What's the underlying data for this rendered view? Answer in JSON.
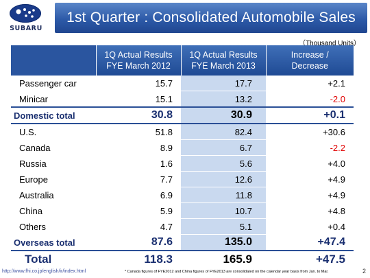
{
  "header": {
    "logo_text": "SUBARU",
    "title": "1st Quarter : Consolidated Automobile Sales"
  },
  "units": "（Thousand Units）",
  "table": {
    "columns": [
      "",
      "1Q Actual Results\nFYE March 2012",
      "1Q Actual Results\nFYE March 2013",
      "Increase /\nDecrease"
    ],
    "column_lines": [
      [
        ""
      ],
      [
        "1Q Actual Results",
        "FYE March 2012"
      ],
      [
        "1Q Actual Results",
        "FYE March 2013"
      ],
      [
        "Increase /",
        "Decrease"
      ]
    ],
    "rows": [
      {
        "label": "Passenger car",
        "fye2012": "15.7",
        "fye2013": "17.7",
        "change": "+2.1",
        "negative": false,
        "bold": false
      },
      {
        "label": "Minicar",
        "fye2012": "15.1",
        "fye2013": "13.2",
        "change": "-2.0",
        "negative": true,
        "bold": false
      },
      {
        "label": "Domestic total",
        "fye2012": "30.8",
        "fye2013": "30.9",
        "change": "+0.1",
        "negative": false,
        "bold": true
      },
      {
        "label": "U.S.",
        "fye2012": "51.8",
        "fye2013": "82.4",
        "change": "+30.6",
        "negative": false,
        "bold": false
      },
      {
        "label": "Canada",
        "fye2012": "8.9",
        "fye2013": "6.7",
        "change": "-2.2",
        "negative": true,
        "bold": false
      },
      {
        "label": "Russia",
        "fye2012": "1.6",
        "fye2013": "5.6",
        "change": "+4.0",
        "negative": false,
        "bold": false
      },
      {
        "label": "Europe",
        "fye2012": "7.7",
        "fye2013": "12.6",
        "change": "+4.9",
        "negative": false,
        "bold": false
      },
      {
        "label": "Australia",
        "fye2012": "6.9",
        "fye2013": "11.8",
        "change": "+4.9",
        "negative": false,
        "bold": false
      },
      {
        "label": "China",
        "fye2012": "5.9",
        "fye2013": "10.7",
        "change": "+4.8",
        "negative": false,
        "bold": false
      },
      {
        "label": "Others",
        "fye2012": "4.7",
        "fye2013": "5.1",
        "change": "+0.4",
        "negative": false,
        "bold": false
      },
      {
        "label": "Overseas total",
        "fye2012": "87.6",
        "fye2013": "135.0",
        "change": "+47.4",
        "negative": false,
        "bold": true
      },
      {
        "label": "Total",
        "fye2012": "118.3",
        "fye2013": "165.9",
        "change": "+47.5",
        "negative": false,
        "bold": true,
        "total": true
      }
    ]
  },
  "footer": {
    "url": "http://www.fhi.co.jp/english/ir/index.html",
    "note": "* Canada figures of FYE2012 and China figures of FYE2013 are consolidated on the calendar year basis from Jan. to Mar.",
    "page": "2"
  },
  "colors": {
    "title_bar": "#2d5aa8",
    "header_cell": "#1f4a94",
    "highlight_column": "#c9d9ef",
    "negative": "#e00000",
    "bold_text": "#1a2f70"
  }
}
